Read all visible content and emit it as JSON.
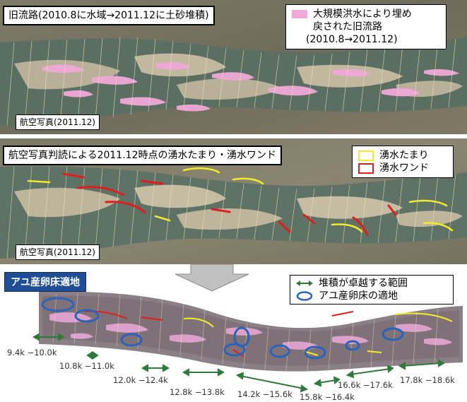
{
  "colors": {
    "old_channel_pink": "#f0a8d8",
    "pool_yellow": "#f2ea2a",
    "wand_red": "#e01e1e",
    "ellipse_blue": "#2a63b8",
    "arrow_green": "#2f7a3a",
    "title_bg": "#1f4e96",
    "sediment": "#b9b09a",
    "water": "#5e7266",
    "land": "#8a8472"
  },
  "panel1": {
    "title": "旧流路(2010.8に水域→2011.12に土砂堆積)",
    "legend_line1": "大規模洪水により埋め",
    "legend_line2": "戻された旧流路",
    "legend_line3": "(2010.8→2011.12)",
    "caption": "航空写真(2011.12)"
  },
  "panel2": {
    "title": "航空写真判読による2011.12時点の湧水たまり・湧水ワンド",
    "legend_pool": "湧水たまり",
    "legend_wand": "湧水ワンド",
    "caption": "航空写真(2011.12)"
  },
  "panel3": {
    "title": "アユ産卵床適地",
    "legend_sediment": "堆積が卓越する範囲",
    "legend_spawning": "アユ産卵床の適地",
    "arrow_icon": "double-arrow-icon",
    "ellipse_icon": "ellipse-icon"
  },
  "ranges": [
    {
      "text": "9.4k −10.0k"
    },
    {
      "text": "10.8k −11.0k"
    },
    {
      "text": "12.0k −12.4k"
    },
    {
      "text": "12.8k −13.8k"
    },
    {
      "text": "14.2k −15.6k"
    },
    {
      "text": "15.8k −16.4k"
    },
    {
      "text": "16.6k −17.6k"
    },
    {
      "text": "17.8k −18.6k"
    }
  ]
}
